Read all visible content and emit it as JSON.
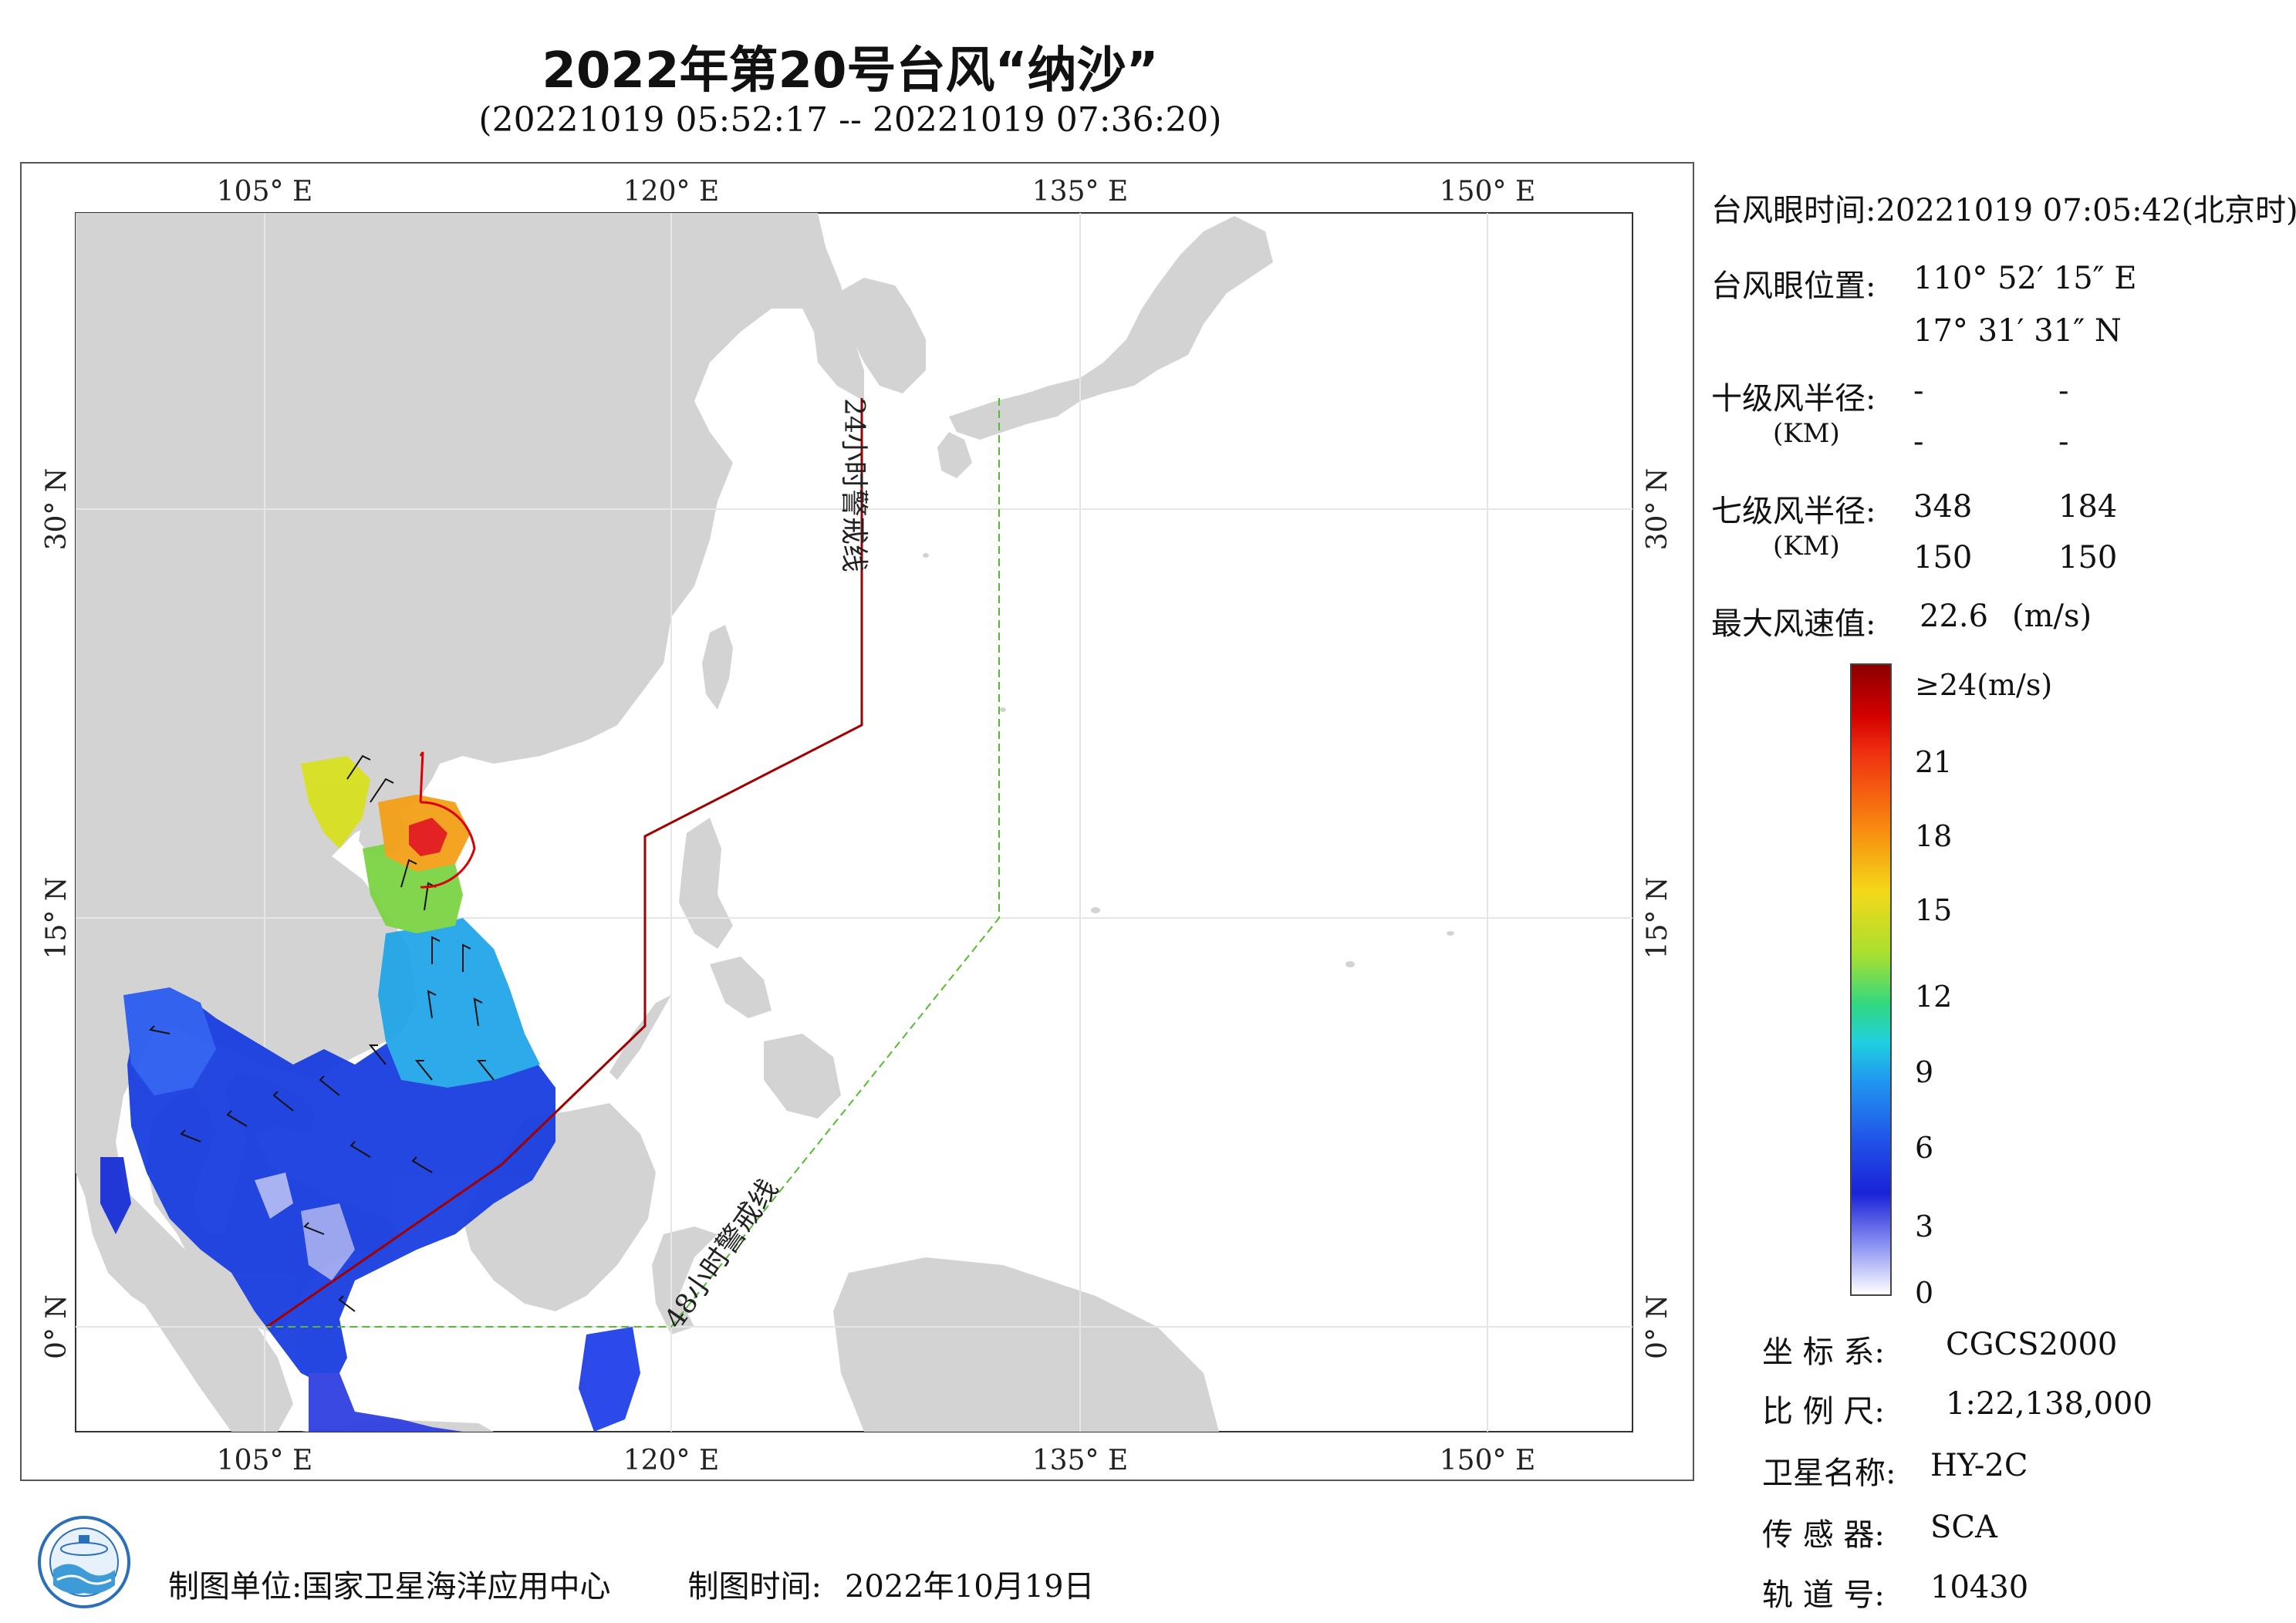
{
  "header": {
    "title": "2022年第20号台风“纳沙”",
    "subtitle": "(20221019 05:52:17 -- 20221019 07:36:20)"
  },
  "map": {
    "top_lon_labels": [
      "105° E",
      "120° E",
      "135° E",
      "150° E"
    ],
    "bottom_lon_labels": [
      "105° E",
      "120° E",
      "135° E",
      "150° E"
    ],
    "left_lat_labels": [
      "30° N",
      "15° N",
      "0° N"
    ],
    "right_lat_labels": [
      "30° N",
      "15° N",
      "0° N"
    ],
    "warning_24h": "24小时警戒线",
    "warning_48h": "48小时警戒线",
    "colors": {
      "land": "#d3d3d3",
      "sea": "#ffffff",
      "line_24h": "#a00000",
      "line_48h": "#55bb33",
      "typhoon_circle": "#dd0000"
    }
  },
  "info": {
    "eye_time_label": "台风眼时间:",
    "eye_time_value": "20221019 07:05:42(北京时)",
    "eye_pos_label": "台风眼位置:",
    "eye_lon": "110° 52′ 15″ E",
    "eye_lat": "17° 31′ 31″ N",
    "r10_label": "十级风半径:",
    "km1": "(KM)",
    "r10_values": [
      "-",
      "-",
      "-",
      "-"
    ],
    "r7_label": "七级风半径:",
    "km2": "(KM)",
    "r7_values": [
      "348",
      "184",
      "150",
      "150"
    ],
    "maxwind_label": "最大风速值:",
    "maxwind_value": "22.6",
    "maxwind_unit": "(m/s)"
  },
  "colorbar": {
    "top_label": "≥24(m/s)",
    "ticks": [
      "21",
      "18",
      "15",
      "12",
      "9",
      "6",
      "3",
      "0"
    ]
  },
  "meta": {
    "crs_label": "坐 标 系:",
    "crs_value": "CGCS2000",
    "scale_label": "比 例 尺:",
    "scale_value": "1:22,138,000",
    "sat_label": "卫星名称:",
    "sat_value": "HY-2C",
    "sensor_label": "传 感 器:",
    "sensor_value": "SCA",
    "orbit_label": "轨 道 号:",
    "orbit_value": "10430"
  },
  "footer": {
    "unit_label": "制图单位:",
    "unit_value": "国家卫星海洋应用中心",
    "time_label": "制图时间:",
    "time_value": "2022年10月19日"
  }
}
